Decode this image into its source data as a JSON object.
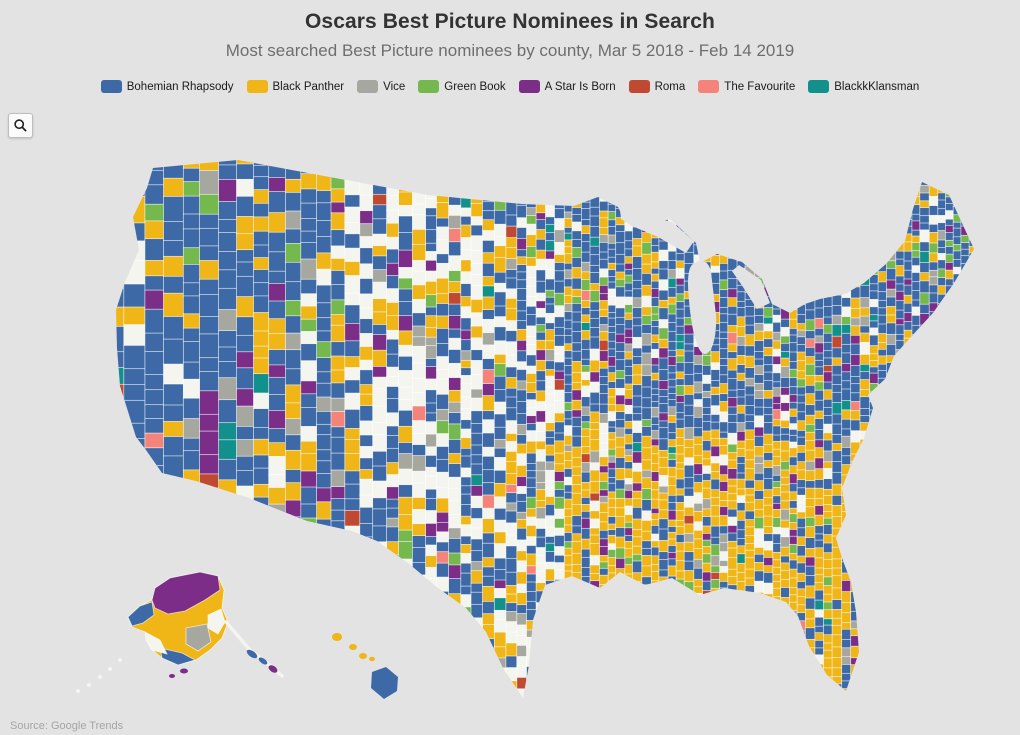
{
  "header": {
    "title": "Oscars Best Picture Nominees in Search",
    "subtitle": "Most searched Best Picture nominees by county, Mar 5 2018 - Feb 14 2019"
  },
  "toolbar": {
    "search_icon": "magnifier"
  },
  "legend": {
    "items": [
      {
        "label": "Bohemian Rhapsody",
        "color": "#3d6aa6"
      },
      {
        "label": "Black Panther",
        "color": "#f0b516"
      },
      {
        "label": "Vice",
        "color": "#a6a79f"
      },
      {
        "label": "Green Book",
        "color": "#75b94e"
      },
      {
        "label": "A Star Is Born",
        "color": "#7c2d88"
      },
      {
        "label": "Roma",
        "color": "#c04a31"
      },
      {
        "label": "The Favourite",
        "color": "#f5837a"
      },
      {
        "label": "BlackkKlansman",
        "color": "#12908c"
      }
    ]
  },
  "map": {
    "type": "choropleth",
    "region": "United States counties",
    "background_color": "#e3e3e4",
    "no_data_color": "#f3f5ee",
    "county_border_color": "#ffffff",
    "zone_distribution": {
      "west": {
        "Bohemian Rhapsody": 0.53,
        "Black Panther": 0.2,
        "No data": 0.06,
        "Vice": 0.07,
        "Green Book": 0.06,
        "A Star Is Born": 0.05,
        "Roma": 0.01,
        "The Favourite": 0.01,
        "BlackkKlansman": 0.01
      },
      "plains": {
        "Bohemian Rhapsody": 0.33,
        "Black Panther": 0.19,
        "No data": 0.31,
        "Vice": 0.05,
        "Green Book": 0.03,
        "A Star Is Born": 0.05,
        "Roma": 0.015,
        "The Favourite": 0.015,
        "BlackkKlansman": 0.01
      },
      "southeast": {
        "Black Panther": 0.52,
        "Bohemian Rhapsody": 0.26,
        "No data": 0.07,
        "A Star Is Born": 0.05,
        "Vice": 0.04,
        "Green Book": 0.04,
        "BlackkKlansman": 0.01,
        "Roma": 0.005,
        "The Favourite": 0.005
      },
      "northeast_midwest": {
        "Bohemian Rhapsody": 0.54,
        "Black Panther": 0.2,
        "A Star Is Born": 0.07,
        "No data": 0.06,
        "Vice": 0.05,
        "Green Book": 0.05,
        "BlackkKlansman": 0.015,
        "The Favourite": 0.01,
        "Roma": 0.005
      }
    },
    "alaska_dominant": [
      "A Star Is Born",
      "Black Panther",
      "Vice",
      "Bohemian Rhapsody"
    ],
    "hawaii_dominant": [
      "Black Panther",
      "Bohemian Rhapsody"
    ]
  },
  "footer": {
    "source": "Source: Google Trends"
  }
}
